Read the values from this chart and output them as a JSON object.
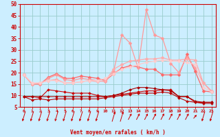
{
  "x": [
    0,
    1,
    2,
    3,
    4,
    5,
    6,
    7,
    8,
    9,
    10,
    11,
    12,
    13,
    14,
    15,
    16,
    17,
    18,
    19,
    20,
    21,
    22,
    23
  ],
  "series": [
    {
      "label": "line_dark1",
      "color": "#cc0000",
      "linewidth": 0.8,
      "markersize": 2.0,
      "values": [
        9.5,
        9.5,
        9.0,
        12.5,
        12.0,
        11.5,
        11.0,
        11.0,
        11.0,
        10.0,
        9.5,
        10.0,
        10.5,
        11.0,
        11.5,
        12.0,
        12.0,
        12.5,
        12.5,
        9.5,
        9.5,
        7.0,
        7.0,
        7.0
      ]
    },
    {
      "label": "line_dark2",
      "color": "#bb0000",
      "linewidth": 0.8,
      "markersize": 2.0,
      "values": [
        9.5,
        8.0,
        8.5,
        8.0,
        8.5,
        8.5,
        8.5,
        8.5,
        8.5,
        8.5,
        9.0,
        9.5,
        10.0,
        10.5,
        11.0,
        11.0,
        11.0,
        11.5,
        11.0,
        9.0,
        7.5,
        7.0,
        6.5,
        6.5
      ]
    },
    {
      "label": "line_dark3",
      "color": "#aa0000",
      "linewidth": 0.8,
      "markersize": 2.0,
      "values": [
        9.5,
        9.5,
        9.5,
        9.5,
        9.5,
        9.5,
        9.5,
        9.5,
        9.5,
        9.5,
        9.5,
        10.0,
        11.0,
        12.5,
        13.5,
        13.5,
        13.0,
        12.5,
        12.0,
        9.5,
        9.5,
        7.5,
        7.0,
        7.0
      ]
    },
    {
      "label": "line_med1",
      "color": "#ff6666",
      "linewidth": 0.9,
      "markersize": 2.5,
      "values": [
        19.0,
        15.0,
        15.0,
        18.0,
        19.5,
        17.5,
        17.5,
        18.5,
        18.0,
        17.5,
        16.5,
        19.5,
        22.0,
        23.0,
        22.5,
        21.5,
        21.5,
        19.0,
        19.0,
        19.0,
        28.0,
        20.5,
        12.0,
        11.5
      ]
    },
    {
      "label": "line_light1",
      "color": "#ff9999",
      "linewidth": 0.9,
      "markersize": 2.5,
      "values": [
        19.0,
        15.0,
        15.0,
        17.5,
        19.0,
        17.0,
        16.5,
        17.5,
        17.0,
        16.5,
        16.0,
        20.5,
        36.5,
        33.0,
        22.0,
        47.5,
        36.5,
        35.0,
        24.0,
        20.0,
        27.0,
        22.0,
        15.5,
        12.0
      ]
    },
    {
      "label": "line_light2",
      "color": "#ffaaaa",
      "linewidth": 0.9,
      "markersize": 2.5,
      "values": [
        19.0,
        15.0,
        15.5,
        16.5,
        17.0,
        15.5,
        15.5,
        16.0,
        16.5,
        16.0,
        16.5,
        21.5,
        23.5,
        25.0,
        25.5,
        26.0,
        26.0,
        26.5,
        25.5,
        25.5,
        26.0,
        25.5,
        15.5,
        11.5
      ]
    },
    {
      "label": "line_light3",
      "color": "#ffcccc",
      "linewidth": 0.9,
      "markersize": 2.5,
      "values": [
        19.0,
        15.5,
        15.5,
        16.5,
        16.5,
        15.5,
        15.5,
        16.0,
        16.5,
        16.5,
        17.5,
        19.5,
        21.5,
        22.5,
        23.5,
        24.5,
        25.0,
        25.5,
        25.0,
        25.0,
        24.5,
        23.5,
        13.5,
        11.5
      ]
    }
  ],
  "xlabel": "Vent moyen/en rafales ( km/h )",
  "xlim_min": -0.5,
  "xlim_max": 23.5,
  "ylim_min": 5,
  "ylim_max": 50,
  "yticks": [
    5,
    10,
    15,
    20,
    25,
    30,
    35,
    40,
    45,
    50
  ],
  "xticks": [
    0,
    1,
    2,
    3,
    4,
    5,
    6,
    7,
    8,
    9,
    10,
    11,
    12,
    13,
    14,
    15,
    16,
    17,
    18,
    19,
    20,
    21,
    22,
    23
  ],
  "bg_color": "#cceeff",
  "grid_color": "#99cccc",
  "line_color": "#cc0000",
  "arrow_angles": [
    -135,
    -135,
    -135,
    -135,
    -135,
    -135,
    -135,
    -135,
    -135,
    -135,
    -150,
    45,
    45,
    60,
    60,
    60,
    60,
    60,
    60,
    60,
    60,
    70,
    -135,
    -135
  ]
}
